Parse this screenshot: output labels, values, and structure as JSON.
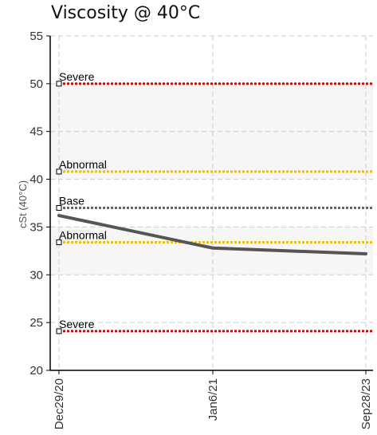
{
  "chart_data": {
    "type": "line",
    "title": "Viscosity @ 40°C",
    "ylabel": "cSt (40°C)",
    "xlabel": "",
    "ylim": [
      20,
      55
    ],
    "y_ticks": [
      20,
      25,
      30,
      35,
      40,
      45,
      50,
      55
    ],
    "categories": [
      "Dec29/20",
      "Jan6/21",
      "Sep28/23"
    ],
    "series": [
      {
        "values": [
          36.2,
          32.8,
          32.2
        ],
        "color": "#555555"
      }
    ],
    "reference_lines": [
      {
        "label": "Severe",
        "value": 50.0,
        "color": "#e00000"
      },
      {
        "label": "Abnormal",
        "value": 40.8,
        "color": "#f0c000"
      },
      {
        "label": "Base",
        "value": 37.0,
        "color": "#666666"
      },
      {
        "label": "Abnormal",
        "value": 33.4,
        "color": "#f0c000"
      },
      {
        "label": "Severe",
        "value": 24.1,
        "color": "#e00000"
      }
    ],
    "shaded_bands": [
      [
        30,
        35
      ],
      [
        40,
        50
      ]
    ],
    "grid": true
  }
}
